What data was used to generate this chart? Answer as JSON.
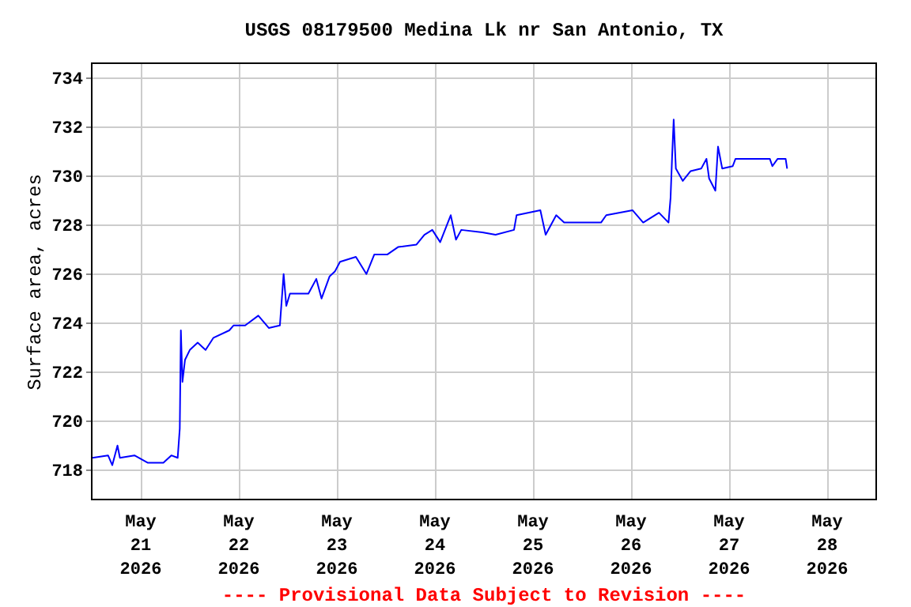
{
  "chart_data": {
    "type": "line",
    "title": "USGS 08179500 Medina Lk nr San Antonio, TX",
    "ylabel": "Surface area, acres",
    "annotations": [
      "---- Provisional Data Subject to Revision ----"
    ],
    "x": [
      "2026-05-20T12:10",
      "2026-05-20T16:00",
      "2026-05-20T17:02",
      "2026-05-20T18:18",
      "2026-05-20T18:54",
      "2026-05-20T22:27",
      "2026-05-21T01:40",
      "2026-05-21T05:32",
      "2026-05-21T07:29",
      "2026-05-21T09:02",
      "2026-05-21T09:33",
      "2026-05-21T09:49",
      "2026-05-21T10:12",
      "2026-05-21T10:50",
      "2026-05-21T12:00",
      "2026-05-21T13:56",
      "2026-05-21T15:52",
      "2026-05-21T17:48",
      "2026-05-21T21:40",
      "2026-05-21T22:42",
      "2026-05-22T01:33",
      "2026-05-22T04:46",
      "2026-05-22T07:20",
      "2026-05-22T10:03",
      "2026-05-22T10:58",
      "2026-05-22T11:37",
      "2026-05-22T12:31",
      "2026-05-22T17:02",
      "2026-05-22T18:58",
      "2026-05-22T20:15",
      "2026-05-22T22:12",
      "2026-05-22T23:30",
      "2026-05-23T00:46",
      "2026-05-23T04:39",
      "2026-05-23T07:14",
      "2026-05-23T09:10",
      "2026-05-23T12:23",
      "2026-05-23T14:58",
      "2026-05-23T19:29",
      "2026-05-23T21:25",
      "2026-05-23T23:21",
      "2026-05-24T01:17",
      "2026-05-24T03:52",
      "2026-05-24T05:09",
      "2026-05-24T06:27",
      "2026-05-24T11:37",
      "2026-05-24T14:50",
      "2026-05-24T19:21",
      "2026-05-24T19:59",
      "2026-05-25T01:48",
      "2026-05-25T03:06",
      "2026-05-25T05:41",
      "2026-05-25T07:37",
      "2026-05-25T16:39",
      "2026-05-25T17:56",
      "2026-05-26T00:23",
      "2026-05-26T02:58",
      "2026-05-26T06:50",
      "2026-05-26T09:10",
      "2026-05-26T09:40",
      "2026-05-26T10:03",
      "2026-05-26T10:26",
      "2026-05-26T10:58",
      "2026-05-26T12:39",
      "2026-05-26T14:35",
      "2026-05-26T17:10",
      "2026-05-26T18:27",
      "2026-05-26T19:06",
      "2026-05-26T20:38",
      "2026-05-26T21:17",
      "2026-05-26T22:19",
      "2026-05-27T00:53",
      "2026-05-27T01:34",
      "2026-05-27T09:58",
      "2026-05-27T10:35",
      "2026-05-27T11:53",
      "2026-05-27T13:50",
      "2026-05-27T14:12"
    ],
    "series": [
      {
        "color": "#0000ff",
        "values": [
          718.5,
          718.6,
          718.2,
          719.0,
          718.5,
          718.6,
          718.3,
          718.3,
          718.6,
          718.5,
          719.7,
          723.7,
          721.6,
          722.5,
          722.9,
          723.2,
          722.9,
          723.4,
          723.7,
          723.9,
          723.9,
          724.3,
          723.8,
          723.9,
          726.0,
          724.7,
          725.2,
          725.2,
          725.8,
          725.0,
          725.9,
          726.1,
          726.5,
          726.7,
          726.0,
          726.8,
          726.8,
          727.1,
          727.2,
          727.6,
          727.8,
          727.3,
          728.4,
          727.4,
          727.8,
          727.7,
          727.6,
          727.8,
          728.4,
          728.6,
          727.6,
          728.4,
          728.1,
          728.1,
          728.4,
          728.6,
          728.1,
          728.5,
          728.1,
          729.1,
          730.8,
          732.3,
          730.3,
          729.8,
          730.2,
          730.3,
          730.7,
          729.9,
          729.4,
          731.2,
          730.3,
          730.4,
          730.7,
          730.7,
          730.4,
          730.7,
          730.7,
          730.3
        ]
      }
    ],
    "xlim": [
      "2026-05-20T12:00",
      "2026-05-28T12:00"
    ],
    "xticks": [
      {
        "value": "2026-05-21",
        "label": "May\n21\n2026"
      },
      {
        "value": "2026-05-22",
        "label": "May\n22\n2026"
      },
      {
        "value": "2026-05-23",
        "label": "May\n23\n2026"
      },
      {
        "value": "2026-05-24",
        "label": "May\n24\n2026"
      },
      {
        "value": "2026-05-25",
        "label": "May\n25\n2026"
      },
      {
        "value": "2026-05-26",
        "label": "May\n26\n2026"
      },
      {
        "value": "2026-05-27",
        "label": "May\n27\n2026"
      },
      {
        "value": "2026-05-28",
        "label": "May\n28\n2026"
      }
    ],
    "ylim": [
      716.8,
      734.6
    ],
    "yticks": [
      718,
      720,
      722,
      724,
      726,
      728,
      730,
      732,
      734
    ],
    "grid": true,
    "line_style": "solid",
    "marker": "none"
  }
}
